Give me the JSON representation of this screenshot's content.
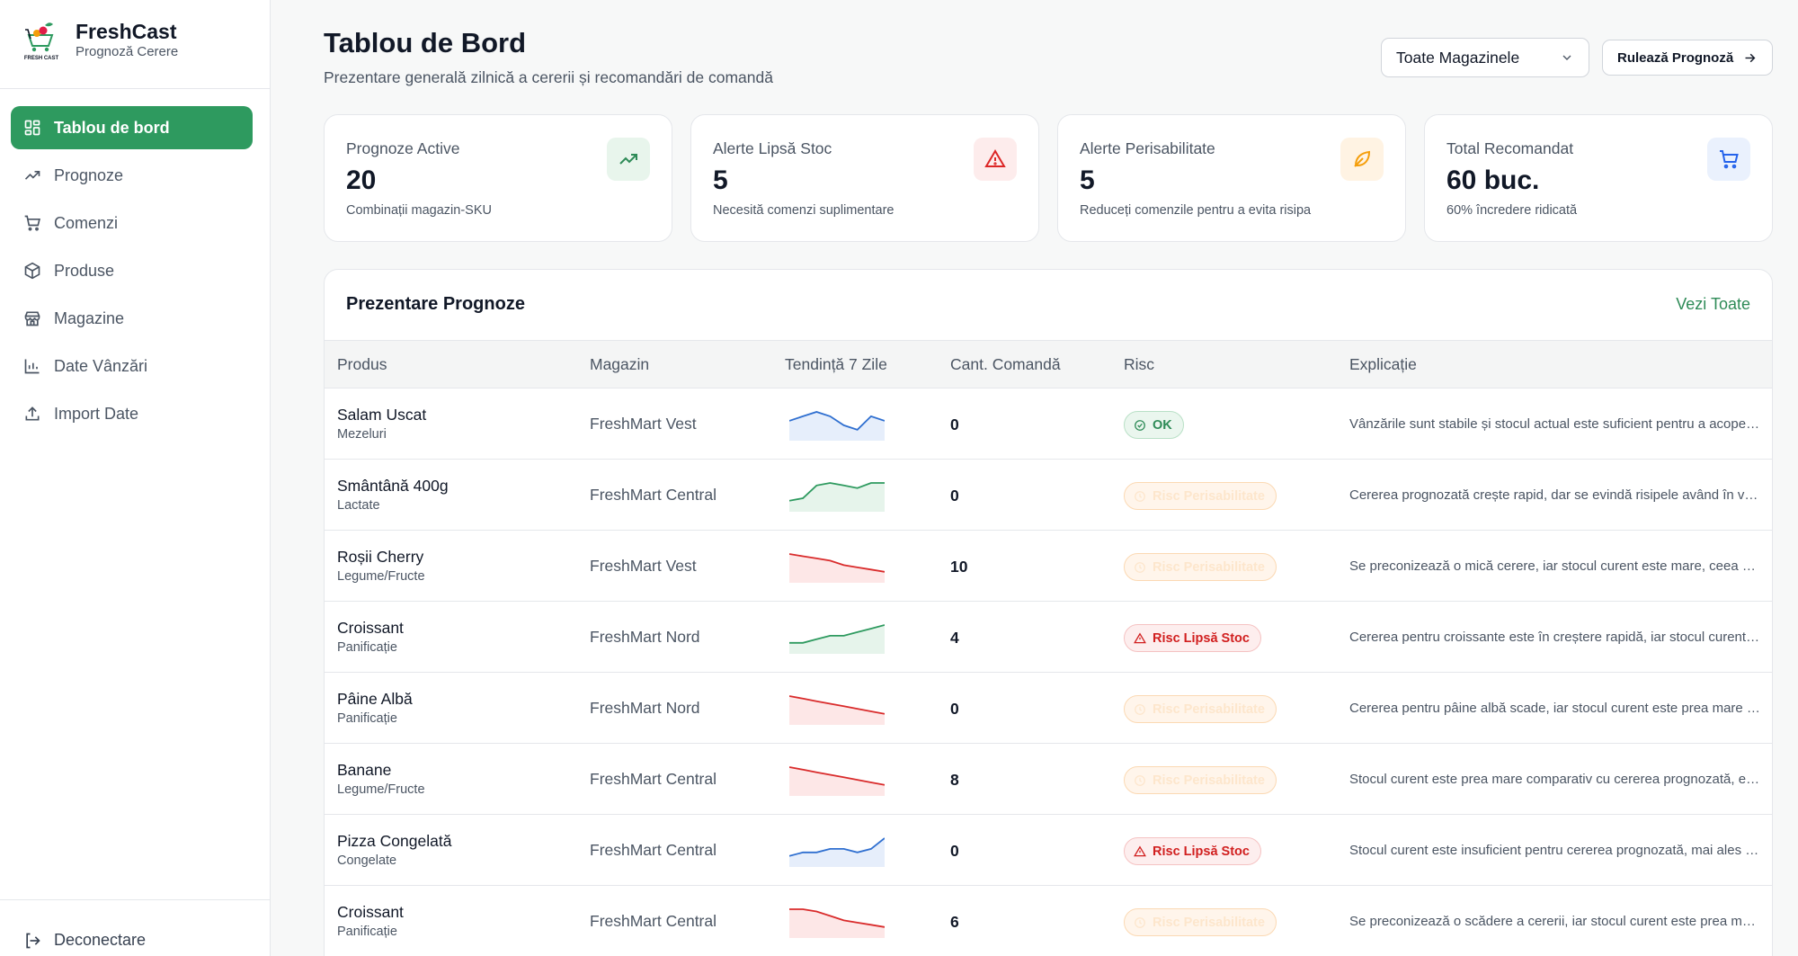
{
  "brand": {
    "name": "FreshCast",
    "subtitle": "Prognoză Cerere",
    "logo_text": "FRESH CAST"
  },
  "sidebar": {
    "items": [
      {
        "label": "Tablou de bord",
        "icon": "dashboard-icon",
        "active": true
      },
      {
        "label": "Prognoze",
        "icon": "trend-icon"
      },
      {
        "label": "Comenzi",
        "icon": "cart-icon"
      },
      {
        "label": "Produse",
        "icon": "package-icon"
      },
      {
        "label": "Magazine",
        "icon": "store-icon"
      },
      {
        "label": "Date Vânzări",
        "icon": "bar-chart-icon"
      },
      {
        "label": "Import Date",
        "icon": "upload-icon"
      }
    ],
    "logout": "Deconectare"
  },
  "header": {
    "title": "Tablou de Bord",
    "subtitle": "Prezentare generală zilnică a cererii și recomandări de comandă",
    "store_select": "Toate Magazinele",
    "run_button": "Rulează Prognoză"
  },
  "stats": [
    {
      "label": "Prognoze Active",
      "value": "20",
      "note": "Combinații magazin-SKU",
      "icon": "trend-up-icon",
      "color": "#2e8b57",
      "bg": "#e8f5ec"
    },
    {
      "label": "Alerte Lipsă Stoc",
      "value": "5",
      "note": "Necesită comenzi suplimentare",
      "icon": "alert-icon",
      "color": "#dc2626",
      "bg": "#fdecec"
    },
    {
      "label": "Alerte Perisabilitate",
      "value": "5",
      "note": "Reduceți comenzile pentru a evita risipa",
      "icon": "leaf-icon",
      "color": "#f59e0b",
      "bg": "#fff3e3"
    },
    {
      "label": "Total Recomandat",
      "value": "60 buc.",
      "note": "60% încredere ridicată",
      "icon": "cart-icon",
      "color": "#2563eb",
      "bg": "#eaf1fd"
    }
  ],
  "table": {
    "title": "Prezentare Prognoze",
    "view_all": "Vezi Toate",
    "columns": [
      "Produs",
      "Magazin",
      "Tendință 7 Zile",
      "Cant. Comandă",
      "Risc",
      "Explicație"
    ],
    "rows": [
      {
        "product": "Salam Uscat",
        "category": "Mezeluri",
        "store": "FreshMart Vest",
        "trend": [
          8,
          9,
          10,
          9,
          7,
          6,
          9,
          8
        ],
        "trend_color": "blue",
        "qty": "0",
        "risk": "OK",
        "risk_type": "ok",
        "explanation": "Vânzările sunt stabile și stocul actual este suficient pentru a acoperi cererea prognozată."
      },
      {
        "product": "Smântână 400g",
        "category": "Lactate",
        "store": "FreshMart Central",
        "trend": [
          3,
          4,
          9,
          10,
          9,
          8,
          10,
          10
        ],
        "trend_color": "green",
        "qty": "0",
        "risk": "Risc Perisabilitate",
        "risk_type": "per",
        "explanation": "Cererea prognozată crește rapid, dar se evindă risipele având în vedere stocul curent."
      },
      {
        "product": "Roșii Cherry",
        "category": "Legume/Fructe",
        "store": "FreshMart Vest",
        "trend": [
          10,
          9,
          8,
          7,
          5,
          4,
          3,
          2
        ],
        "trend_color": "red",
        "qty": "10",
        "risk": "Risc Perisabilitate",
        "risk_type": "per",
        "explanation": "Se preconizează o mică cerere, iar stocul curent este mare, ceea ce crește riscul de risipă."
      },
      {
        "product": "Croissant",
        "category": "Panificație",
        "store": "FreshMart Nord",
        "trend": [
          5,
          5,
          6,
          7,
          7,
          8,
          9,
          10
        ],
        "trend_color": "green",
        "qty": "4",
        "risk": "Risc Lipsă Stoc",
        "risk_type": "stock",
        "explanation": "Cererea pentru croissante este în creștere rapidă, iar stocul curent nu acoperă necesarul."
      },
      {
        "product": "Pâine Albă",
        "category": "Panificație",
        "store": "FreshMart Nord",
        "trend": [
          10,
          9,
          8,
          7,
          6,
          5,
          4,
          3
        ],
        "trend_color": "red",
        "qty": "0",
        "risk": "Risc Perisabilitate",
        "risk_type": "per",
        "explanation": "Cererea pentru pâine albă scade, iar stocul curent este prea mare față de vânzări."
      },
      {
        "product": "Banane",
        "category": "Legume/Fructe",
        "store": "FreshMart Central",
        "trend": [
          10,
          9,
          8,
          7,
          6,
          5,
          4,
          3
        ],
        "trend_color": "red",
        "qty": "8",
        "risk": "Risc Perisabilitate",
        "risk_type": "per",
        "explanation": "Stocul curent este prea mare comparativ cu cererea prognozată, existând risc de risipă."
      },
      {
        "product": "Pizza Congelată",
        "category": "Congelate",
        "store": "FreshMart Central",
        "trend": [
          5,
          6,
          6,
          7,
          7,
          6,
          7,
          10
        ],
        "trend_color": "blue",
        "qty": "0",
        "risk": "Risc Lipsă Stoc",
        "risk_type": "stock",
        "explanation": "Stocul curent este insuficient pentru cererea prognozată, mai ales în weekend."
      },
      {
        "product": "Croissant",
        "category": "Panificație",
        "store": "FreshMart Central",
        "trend": [
          10,
          10,
          9,
          7,
          5,
          4,
          3,
          2
        ],
        "trend_color": "red",
        "qty": "6",
        "risk": "Risc Perisabilitate",
        "risk_type": "per",
        "explanation": "Se preconizează o scădere a cererii, iar stocul curent este prea mare pentru vânzări."
      }
    ]
  }
}
